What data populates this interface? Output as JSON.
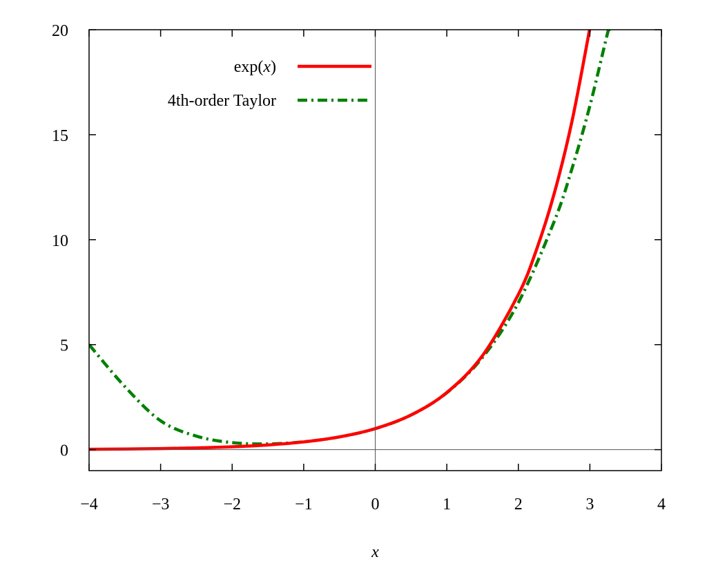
{
  "chart_data": {
    "type": "line",
    "title": "",
    "xlabel": "x",
    "ylabel": "",
    "xlim": [
      -4,
      4
    ],
    "ylim": [
      -1,
      20
    ],
    "xticks": [
      -4,
      -3,
      -2,
      -1,
      0,
      1,
      2,
      3,
      4
    ],
    "xtick_labels": [
      "−4",
      "−3",
      "−2",
      "−1",
      "0",
      "1",
      "2",
      "3",
      "4"
    ],
    "yticks": [
      0,
      5,
      10,
      15,
      20
    ],
    "ytick_labels": [
      "0",
      "5",
      "10",
      "15",
      "20"
    ],
    "grid": false,
    "zero_lines": true,
    "legend_position": "top-left",
    "series": [
      {
        "name_prefix": "exp(",
        "name_var": "x",
        "name_suffix": ")",
        "color": "#ff0000",
        "dash": "solid",
        "x": [
          -4,
          -3.5,
          -3,
          -2.5,
          -2,
          -1.5,
          -1,
          -0.5,
          0,
          0.5,
          1,
          1.5,
          2,
          2.25,
          2.5,
          2.75,
          2.9957
        ],
        "values": [
          0.018,
          0.03,
          0.05,
          0.082,
          0.135,
          0.223,
          0.368,
          0.607,
          1.0,
          1.649,
          2.718,
          4.482,
          7.389,
          9.488,
          12.182,
          15.643,
          20.0
        ]
      },
      {
        "name": "4th-order Taylor",
        "color": "#008000",
        "dash": "dash-dot",
        "x": [
          -4,
          -3.5,
          -3,
          -2.5,
          -2,
          -1.5,
          -1,
          -0.5,
          0,
          0.5,
          1,
          1.5,
          2,
          2.5,
          2.75,
          3,
          3.25,
          3.2727
        ],
        "values": [
          5.0,
          3.003,
          1.375,
          0.643,
          0.333,
          0.273,
          0.375,
          0.607,
          1.0,
          1.648,
          2.708,
          4.398,
          7.0,
          10.857,
          13.386,
          16.375,
          19.88,
          20.0
        ]
      }
    ]
  }
}
